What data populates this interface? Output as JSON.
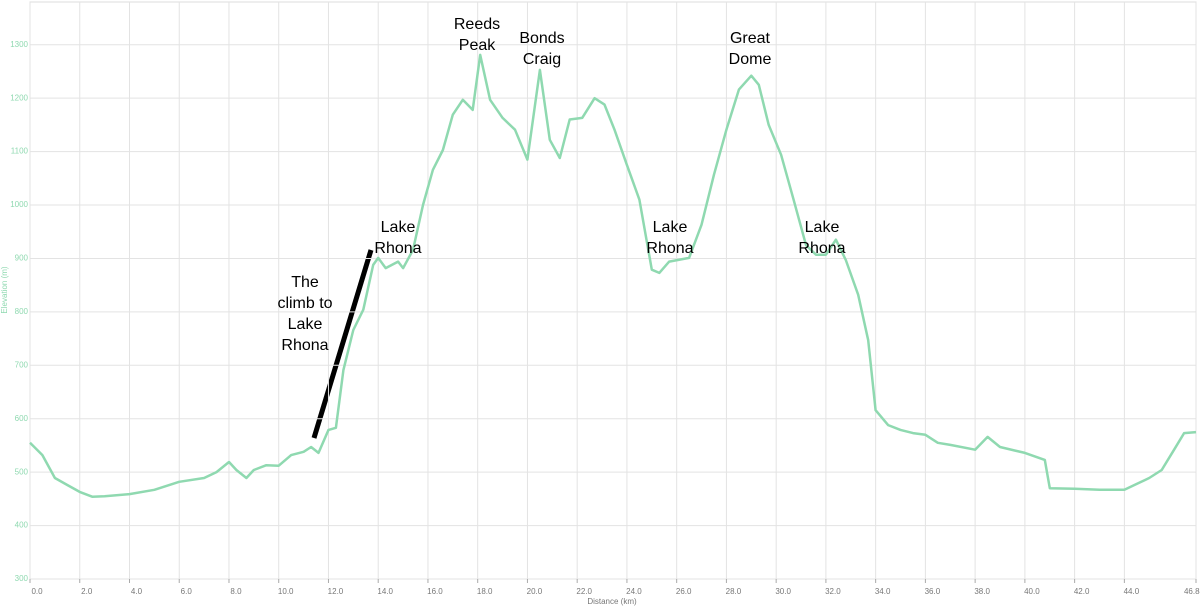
{
  "chart_data": {
    "type": "line",
    "x_label": "Distance (km)",
    "y_label": "Elevation (m)",
    "x": [
      0,
      0.5,
      1,
      1.5,
      2,
      2.5,
      3,
      4,
      5,
      6,
      7,
      7.5,
      8,
      8.3,
      8.7,
      9,
      9.5,
      10,
      10.5,
      11,
      11.3,
      11.6,
      12,
      12.3,
      12.6,
      13,
      13.4,
      13.8,
      14,
      14.3,
      14.8,
      15,
      15.4,
      15.8,
      16.2,
      16.6,
      17,
      17.4,
      17.8,
      18.1,
      18.5,
      19,
      19.5,
      20,
      20.5,
      20.9,
      21.3,
      21.7,
      22.2,
      22.7,
      23.1,
      23.5,
      24,
      24.5,
      25,
      25.3,
      25.7,
      26.5,
      27,
      27.5,
      28,
      28.5,
      29,
      29.3,
      29.7,
      30.2,
      30.7,
      31.2,
      31.6,
      32,
      32.4,
      32.8,
      33.3,
      33.7,
      34,
      34.5,
      35,
      35.5,
      36,
      36.5,
      37,
      38,
      38.5,
      39,
      40,
      40.8,
      41,
      42,
      43,
      44,
      44.5,
      45,
      45.5,
      46,
      46.4,
      46.88
    ],
    "series": [
      {
        "color": "#8fd9b0",
        "values": [
          555,
          532,
          489,
          476,
          463,
          454,
          455,
          459,
          467,
          482,
          489,
          500,
          519,
          504,
          489,
          504,
          513,
          512,
          532,
          538,
          547,
          536,
          579,
          583,
          691,
          766,
          804,
          888,
          901,
          882,
          894,
          882,
          916,
          1000,
          1066,
          1103,
          1169,
          1197,
          1178,
          1281,
          1197,
          1163,
          1141,
          1085,
          1253,
          1122,
          1088,
          1160,
          1163,
          1200,
          1188,
          1141,
          1075,
          1010,
          879,
          873,
          894,
          901,
          963,
          1057,
          1141,
          1216,
          1242,
          1225,
          1150,
          1094,
          1010,
          925,
          907,
          907,
          935,
          897,
          832,
          747,
          616,
          588,
          579,
          573,
          570,
          555,
          551,
          542,
          566,
          547,
          536,
          523,
          470,
          469,
          467,
          467,
          478,
          489,
          504,
          542,
          573,
          575
        ]
      }
    ],
    "xlim": [
      0,
      46.88
    ],
    "ylim": [
      300,
      1380
    ],
    "xticks": [
      {
        "value": 0,
        "label": "0.0"
      },
      {
        "value": 2,
        "label": "2.0"
      },
      {
        "value": 4,
        "label": "4.0"
      },
      {
        "value": 6,
        "label": "6.0"
      },
      {
        "value": 8,
        "label": "8.0"
      },
      {
        "value": 10,
        "label": "10.0"
      },
      {
        "value": 12,
        "label": "12.0"
      },
      {
        "value": 14,
        "label": "14.0"
      },
      {
        "value": 16,
        "label": "16.0"
      },
      {
        "value": 18,
        "label": "18.0"
      },
      {
        "value": 20,
        "label": "20.0"
      },
      {
        "value": 22,
        "label": "22.0"
      },
      {
        "value": 24,
        "label": "24.0"
      },
      {
        "value": 26,
        "label": "26.0"
      },
      {
        "value": 28,
        "label": "28.0"
      },
      {
        "value": 30,
        "label": "30.0"
      },
      {
        "value": 32,
        "label": "32.0"
      },
      {
        "value": 34,
        "label": "34.0"
      },
      {
        "value": 36,
        "label": "36.0"
      },
      {
        "value": 38,
        "label": "38.0"
      },
      {
        "value": 40,
        "label": "40.0"
      },
      {
        "value": 42,
        "label": "42.0"
      },
      {
        "value": 44,
        "label": "44.0"
      },
      46.88
    ],
    "yticks": [
      300,
      400,
      500,
      600,
      700,
      800,
      900,
      1000,
      1100,
      1200,
      1300
    ],
    "grid": true,
    "annotations": [
      {
        "lines": [
          "Reeds",
          "Peak"
        ]
      },
      {
        "lines": [
          "Bonds",
          "Craig"
        ]
      },
      {
        "lines": [
          "Great",
          "Dome"
        ]
      },
      {
        "lines": [
          "Lake",
          "Rhona"
        ]
      },
      {
        "lines": [
          "Lake",
          "Rhona"
        ]
      },
      {
        "lines": [
          "Lake",
          "Rhona"
        ]
      },
      {
        "lines": [
          "The",
          "climb to",
          "Lake",
          "Rhona"
        ]
      }
    ]
  }
}
